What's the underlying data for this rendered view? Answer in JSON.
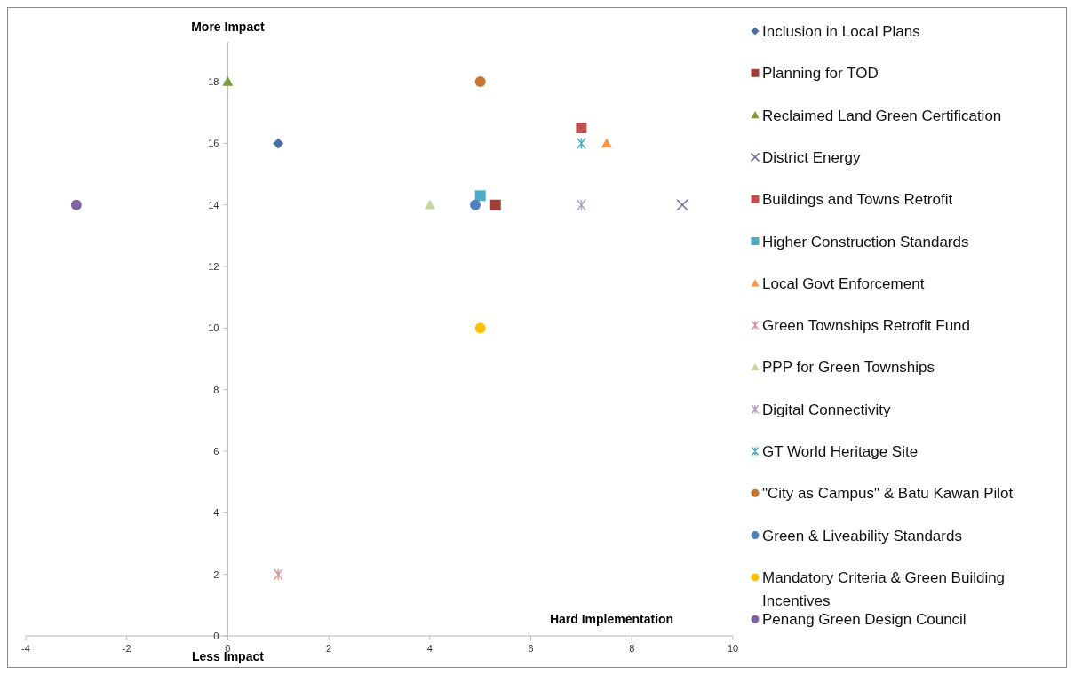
{
  "chart_data": {
    "type": "scatter",
    "xlim": [
      -4,
      10
    ],
    "ylim": [
      0,
      19.3
    ],
    "xticks": [
      -4,
      -2,
      0,
      2,
      4,
      6,
      8,
      10
    ],
    "yticks": [
      0,
      2,
      4,
      6,
      8,
      10,
      12,
      14,
      16,
      18
    ],
    "grid": false,
    "legend": "right",
    "annotations": [
      "More Impact",
      "Less Impact",
      "Hard Implementation"
    ],
    "series": [
      {
        "name": "Inclusion in Local Plans",
        "color": "#4a6fa5",
        "marker": "diamond",
        "x": [
          1
        ],
        "values": [
          16
        ]
      },
      {
        "name": "Planning for TOD",
        "color": "#a33d3a",
        "marker": "square",
        "x": [
          5.3
        ],
        "values": [
          14
        ]
      },
      {
        "name": "Reclaimed Land Green Certification",
        "color": "#7d9a3c",
        "marker": "triangle",
        "x": [
          0
        ],
        "values": [
          18
        ]
      },
      {
        "name": "District Energy",
        "color": "#8068a0",
        "marker": "x",
        "x": [
          9
        ],
        "values": [
          14
        ]
      },
      {
        "name": "Buildings and Towns Retrofit",
        "color": "#c0504d",
        "marker": "square",
        "x": [
          7
        ],
        "values": [
          16.5
        ]
      },
      {
        "name": "Higher Construction Standards",
        "color": "#4bacc6",
        "marker": "square",
        "x": [
          5
        ],
        "values": [
          14.3
        ]
      },
      {
        "name": "Local Govt Enforcement",
        "color": "#f79646",
        "marker": "triangle",
        "x": [
          7.5
        ],
        "values": [
          16
        ]
      },
      {
        "name": "Green Townships Retrofit Fund",
        "color": "#d99694",
        "marker": "cross",
        "x": [
          1
        ],
        "values": [
          2
        ]
      },
      {
        "name": "PPP for Green Townships",
        "color": "#c3d69b",
        "marker": "triangle",
        "x": [
          4
        ],
        "values": [
          14
        ]
      },
      {
        "name": "Digital Connectivity",
        "color": "#b3a2c7",
        "marker": "cross",
        "x": [
          7
        ],
        "values": [
          14
        ]
      },
      {
        "name": "GT World Heritage Site",
        "color": "#4bacc6",
        "marker": "cross",
        "x": [
          7
        ],
        "values": [
          16
        ]
      },
      {
        "name": "\"City as Campus\" & Batu Kawan Pilot",
        "color": "#c87533",
        "marker": "circle",
        "x": [
          5
        ],
        "values": [
          18
        ]
      },
      {
        "name": "Green & Liveability Standards",
        "color": "#4f81bd",
        "marker": "circle",
        "x": [
          4.9
        ],
        "values": [
          14
        ]
      },
      {
        "name": "Mandatory Criteria & Green Building Incentives",
        "color": "#ffc000",
        "marker": "circle",
        "x": [
          5
        ],
        "values": [
          10
        ]
      },
      {
        "name": "Penang Green Design Council",
        "color": "#8064a2",
        "marker": "circle",
        "x": [
          -3
        ],
        "values": [
          14
        ]
      }
    ]
  }
}
